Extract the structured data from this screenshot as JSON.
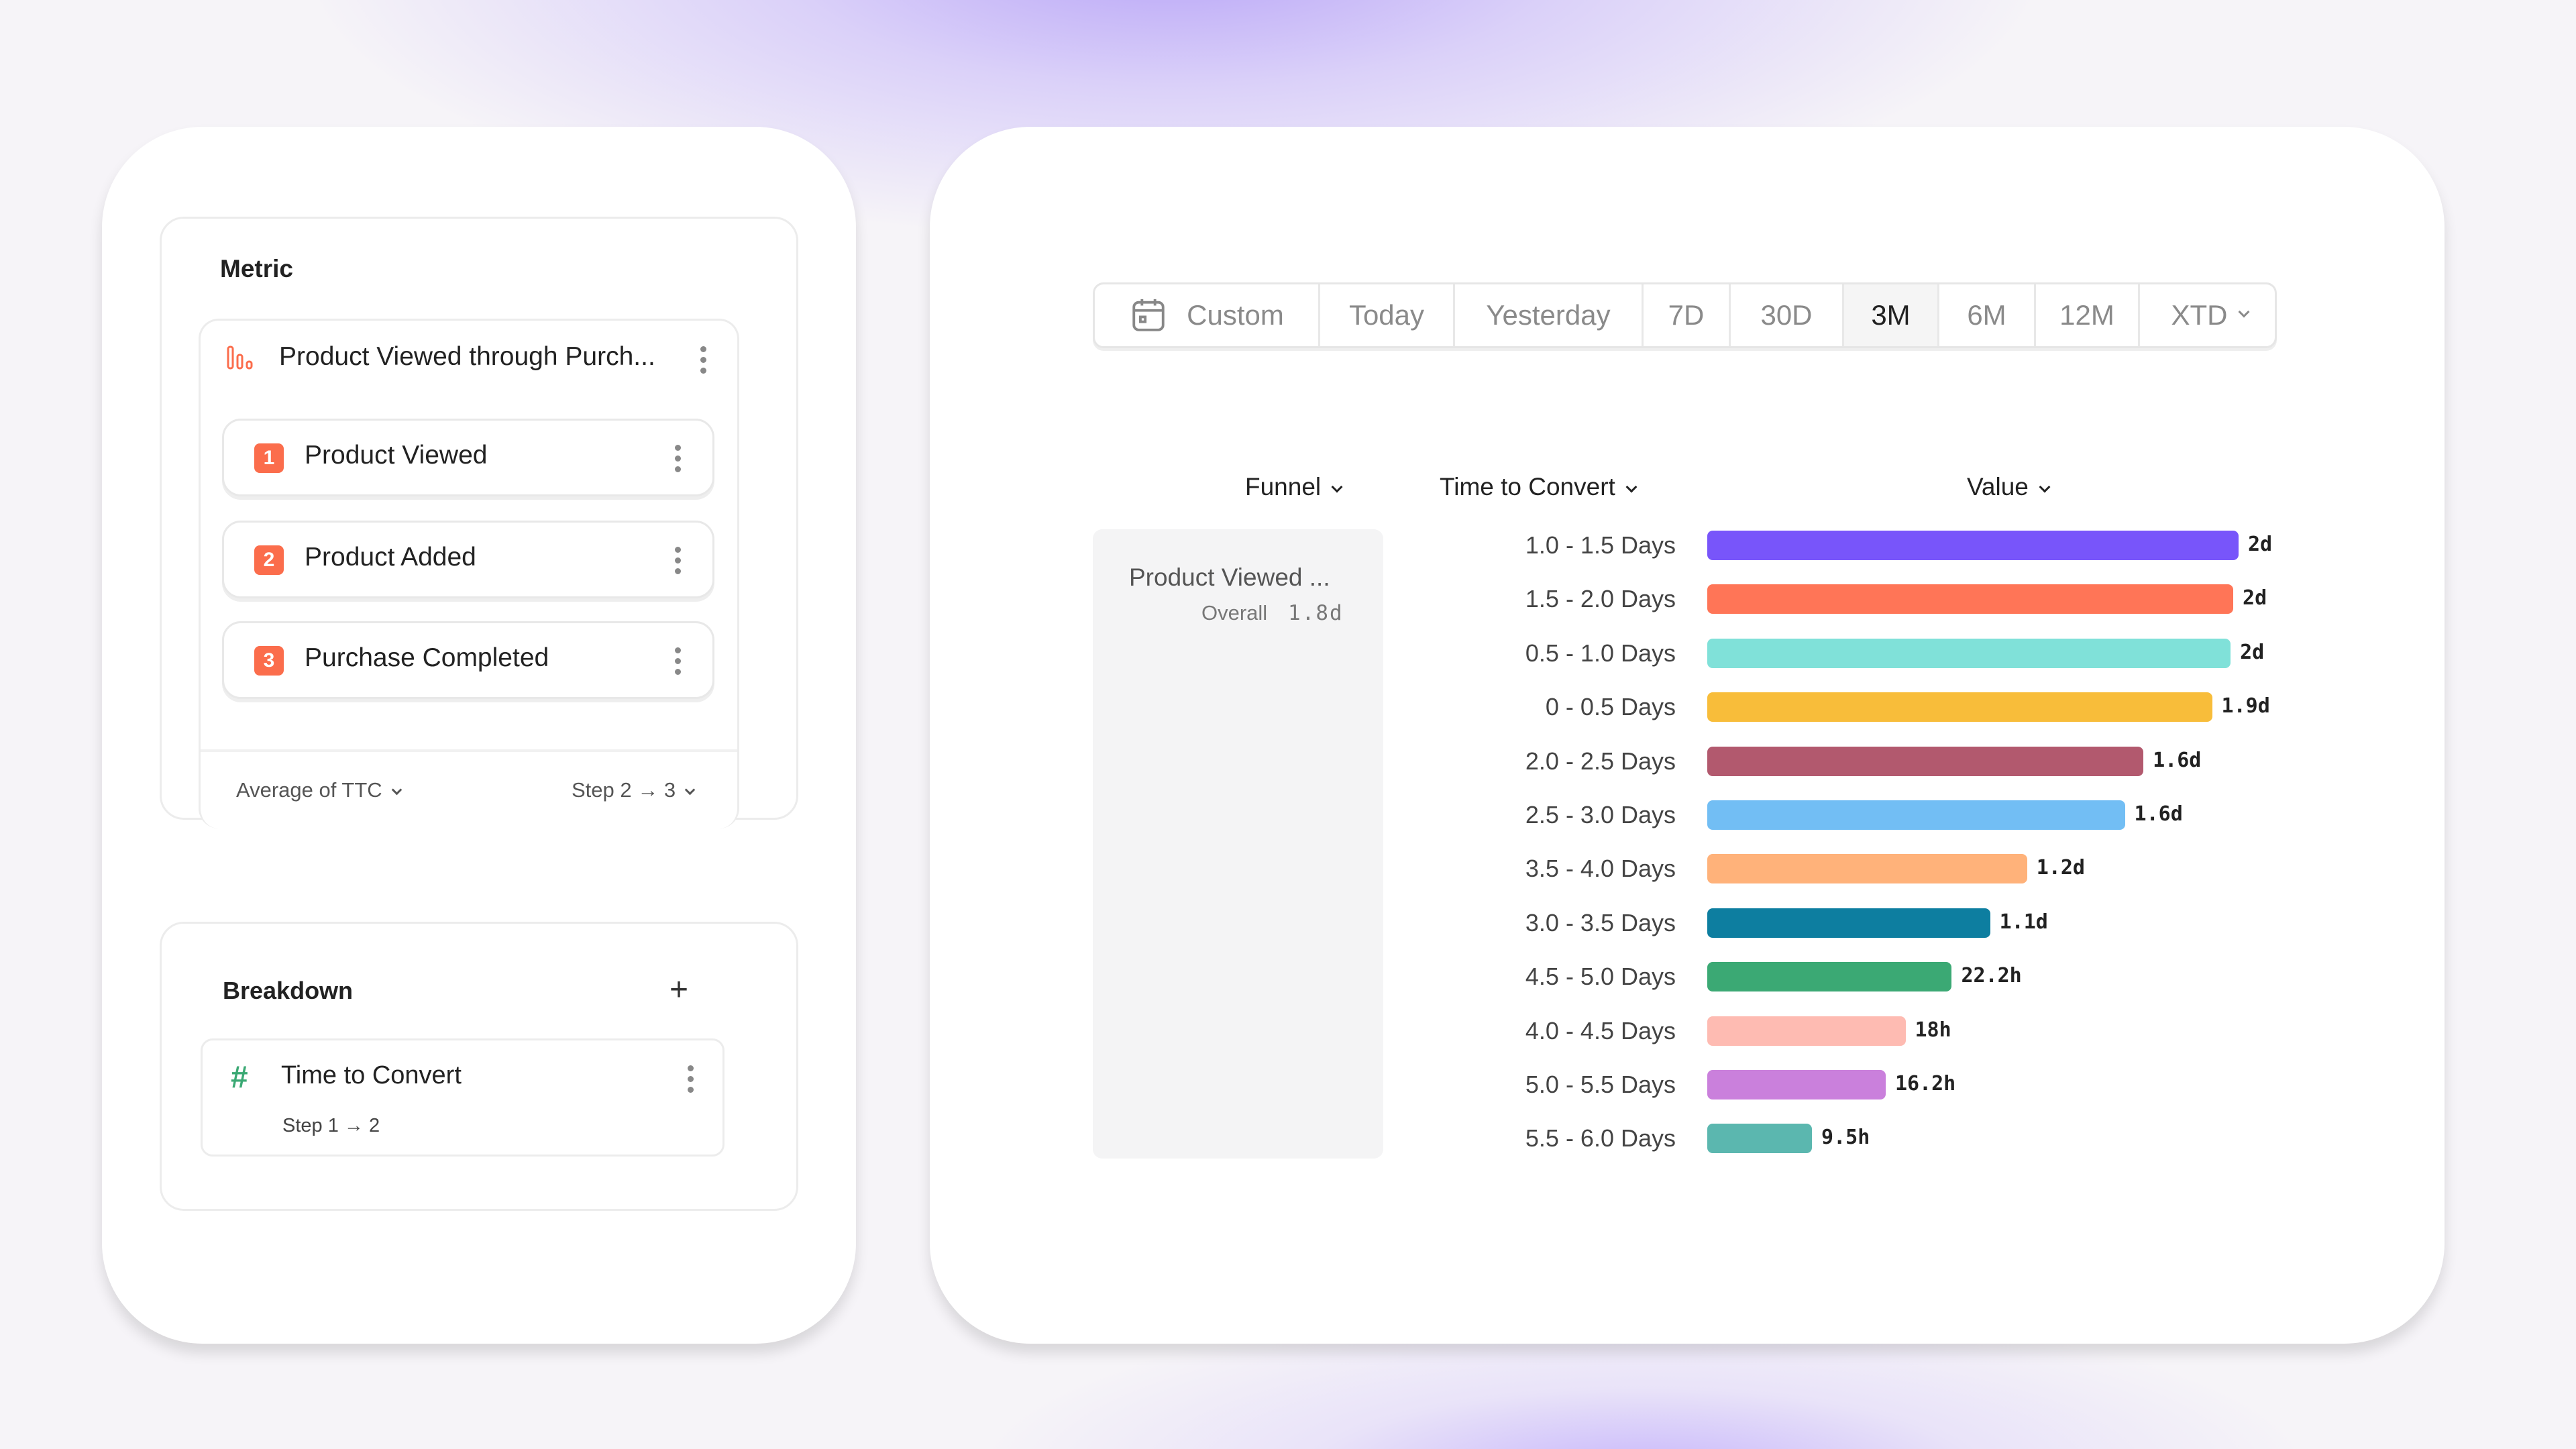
{
  "metric": {
    "title": "Metric",
    "funnel_name": "Product Viewed through Purch...",
    "steps": [
      {
        "num": "1",
        "label": "Product Viewed"
      },
      {
        "num": "2",
        "label": "Product Added"
      },
      {
        "num": "3",
        "label": "Purchase Completed"
      }
    ],
    "aggregation": "Average of TTC",
    "step_range": "Step 2 → 3"
  },
  "breakdown": {
    "title": "Breakdown",
    "item": {
      "label": "Time to Convert",
      "sub": "Step 1 → 2"
    }
  },
  "date_range": {
    "options": [
      "Custom",
      "Today",
      "Yesterday",
      "7D",
      "30D",
      "3M",
      "6M",
      "12M",
      "XTD"
    ],
    "selected": "3M"
  },
  "table": {
    "headers": {
      "funnel": "Funnel",
      "ttc": "Time to Convert",
      "value": "Value"
    },
    "funnel_name": "Product Viewed ...",
    "overall_label": "Overall",
    "overall_value": "1.8d"
  },
  "chart_data": {
    "type": "bar",
    "orientation": "horizontal",
    "unit": "days",
    "categories": [
      "1.0 - 1.5 Days",
      "1.5 - 2.0 Days",
      "0.5 - 1.0 Days",
      "0 - 0.5 Days",
      "2.0 - 2.5 Days",
      "2.5 - 3.0 Days",
      "3.5 - 4.0 Days",
      "3.0 - 3.5 Days",
      "4.5 - 5.0 Days",
      "4.0 - 4.5 Days",
      "5.0 - 5.5 Days",
      "5.5 - 6.0 Days"
    ],
    "values": [
      2.01,
      1.99,
      1.98,
      1.91,
      1.65,
      1.58,
      1.21,
      1.07,
      0.925,
      0.75,
      0.675,
      0.396
    ],
    "labels": [
      "2d",
      "2d",
      "2d",
      "1.9d",
      "1.6d",
      "1.6d",
      "1.2d",
      "1.1d",
      "22.2h",
      "18h",
      "16.2h",
      "9.5h"
    ],
    "colors": [
      "#7855fa",
      "#ff7557",
      "#80e1d9",
      "#f8bd3a",
      "#b2596e",
      "#72bef4",
      "#ffb27a",
      "#0d7ea0",
      "#3ba974",
      "#febbb2",
      "#ca80dc",
      "#5bb7af"
    ],
    "xlim": [
      0,
      2.0
    ]
  }
}
